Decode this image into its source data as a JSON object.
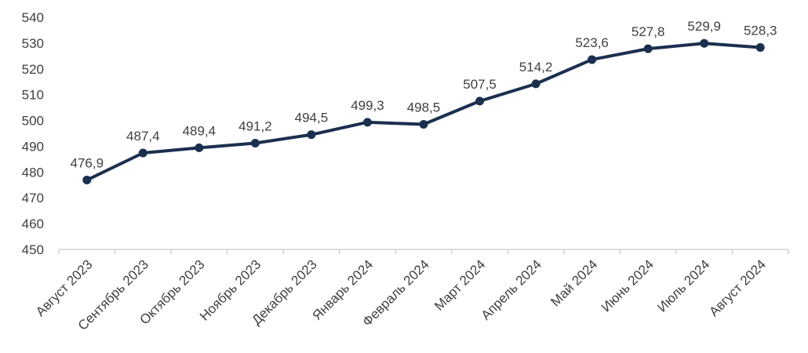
{
  "chart_data": {
    "type": "line",
    "title": "",
    "xlabel": "",
    "ylabel": "",
    "ylim": [
      450,
      540
    ],
    "yticks": [
      450,
      460,
      470,
      480,
      490,
      500,
      510,
      520,
      530,
      540
    ],
    "ytick_labels": [
      "450",
      "460",
      "470",
      "480",
      "490",
      "500",
      "510",
      "520",
      "530",
      "540"
    ],
    "grid": false,
    "legend": "none",
    "categories": [
      "Август 2023",
      "Сентябрь 2023",
      "Октябрь 2023",
      "Ноябрь 2023",
      "Декабрь 2023",
      "Январь 2024",
      "Февраль 2024",
      "Март 2024",
      "Апрель 2024",
      "Май 2024",
      "Июнь 2024",
      "Июль 2024",
      "Август 2024"
    ],
    "series": [
      {
        "values": [
          476.9,
          487.4,
          489.4,
          491.2,
          494.5,
          499.3,
          498.5,
          507.5,
          514.2,
          523.6,
          527.8,
          529.9,
          528.3
        ],
        "labels": [
          "476,9",
          "487,4",
          "489,4",
          "491,2",
          "494,5",
          "499,3",
          "498,5",
          "507,5",
          "514,2",
          "523,6",
          "527,8",
          "529,9",
          "528,3"
        ],
        "color": "#1b2f4f"
      }
    ],
    "axis_color": "#bfbfbf",
    "text_color": "#404040"
  }
}
